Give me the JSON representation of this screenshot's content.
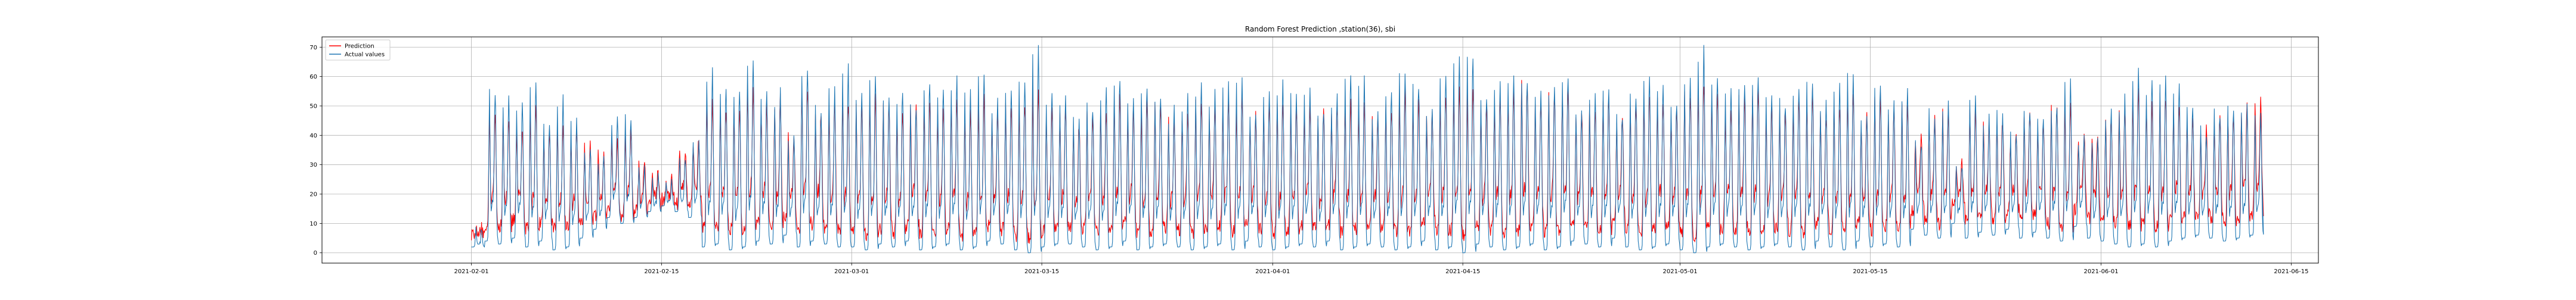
{
  "chart_data": {
    "type": "line",
    "title": "Random Forest Prediction ,station(36), sbi",
    "xlabel": "",
    "ylabel": "",
    "x_range": [
      "2021-01-21",
      "2021-06-17"
    ],
    "xlim": [
      "2021-01-21",
      "2021-06-17"
    ],
    "ylim": [
      -3.5,
      73.5
    ],
    "x_ticks": [
      "2021-02-01",
      "2021-02-15",
      "2021-03-01",
      "2021-03-15",
      "2021-04-01",
      "2021-04-15",
      "2021-05-01",
      "2021-05-15",
      "2021-06-01",
      "2021-06-15"
    ],
    "y_ticks": [
      0,
      10,
      20,
      30,
      40,
      50,
      60,
      70
    ],
    "grid": true,
    "legend_position": "top-left",
    "sampling": "hourly",
    "series": [
      {
        "name": "Prediction",
        "color": "#ff0000"
      },
      {
        "name": "Actual values",
        "color": "#1f77b4"
      }
    ],
    "segments": [
      {
        "start": "2021-02-01",
        "end": "2021-02-08",
        "actual_max": [
          7,
          56,
          52,
          50,
          56,
          45,
          53,
          44
        ],
        "actual_min": [
          2,
          4,
          3,
          5,
          2,
          4,
          1,
          2
        ],
        "pred_max": [
          8,
          47,
          45,
          42,
          48,
          40,
          44,
          40
        ],
        "pred_min": [
          6,
          10,
          9,
          11,
          8,
          10,
          8,
          9
        ]
      },
      {
        "start": "2021-02-09",
        "end": "2021-02-17",
        "actual_max": [
          38,
          33,
          45,
          47,
          30,
          25,
          23,
          32,
          38
        ],
        "actual_min": [
          5,
          8,
          12,
          10,
          12,
          14,
          16,
          14,
          12
        ],
        "pred_max": [
          36,
          34,
          40,
          42,
          31,
          27,
          25,
          34,
          39
        ],
        "pred_min": [
          11,
          12,
          14,
          13,
          15,
          16,
          18,
          17,
          16
        ]
      },
      {
        "start": "2021-02-18",
        "end": "2021-02-28",
        "actual_max": [
          62,
          58,
          55,
          68,
          55,
          54,
          40,
          65,
          50,
          55,
          62
        ],
        "actual_min": [
          2,
          3,
          1,
          2,
          4,
          3,
          6,
          2,
          4,
          3,
          2
        ],
        "pred_max": [
          52,
          50,
          50,
          56,
          50,
          52,
          40,
          55,
          48,
          50,
          52
        ],
        "pred_min": [
          8,
          9,
          8,
          9,
          10,
          9,
          12,
          8,
          10,
          9,
          8
        ]
      },
      {
        "start": "2021-03-01",
        "end": "2021-03-16",
        "actual_max": [
          54,
          60,
          52,
          55,
          50,
          60,
          55,
          58,
          54,
          62,
          50,
          55,
          60,
          68,
          55,
          52
        ],
        "actual_min": [
          2,
          1,
          3,
          2,
          4,
          1,
          2,
          3,
          1,
          2,
          4,
          3,
          1,
          0,
          2,
          3
        ],
        "pred_max": [
          50,
          52,
          50,
          48,
          50,
          52,
          50,
          50,
          48,
          52,
          48,
          50,
          52,
          55,
          50,
          48
        ],
        "pred_min": [
          7,
          6,
          8,
          7,
          9,
          6,
          7,
          8,
          6,
          7,
          9,
          8,
          6,
          5,
          7,
          8
        ]
      },
      {
        "start": "2021-03-17",
        "end": "2021-04-02",
        "actual_max": [
          45,
          50,
          55,
          60,
          52,
          58,
          55,
          48,
          52,
          58,
          54,
          56,
          60,
          50,
          55,
          58,
          54
        ],
        "actual_min": [
          3,
          2,
          1,
          2,
          4,
          1,
          2,
          3,
          2,
          1,
          2,
          3,
          1,
          4,
          2,
          1,
          2
        ],
        "pred_max": [
          44,
          47,
          50,
          52,
          48,
          50,
          50,
          45,
          48,
          51,
          49,
          50,
          52,
          46,
          50,
          51,
          49
        ],
        "pred_min": [
          9,
          8,
          7,
          8,
          10,
          7,
          8,
          9,
          8,
          7,
          8,
          9,
          7,
          10,
          8,
          7,
          8
        ]
      },
      {
        "start": "2021-04-03",
        "end": "2021-04-18",
        "actual_max": [
          55,
          50,
          52,
          60,
          58,
          48,
          55,
          62,
          58,
          50,
          60,
          65,
          68,
          55,
          58,
          62
        ],
        "actual_min": [
          3,
          2,
          4,
          1,
          2,
          3,
          2,
          1,
          2,
          4,
          1,
          2,
          0,
          3,
          2,
          1
        ],
        "pred_max": [
          50,
          48,
          50,
          52,
          51,
          46,
          50,
          54,
          52,
          47,
          53,
          55,
          56,
          50,
          52,
          54
        ],
        "pred_min": [
          9,
          8,
          10,
          7,
          8,
          9,
          8,
          7,
          8,
          10,
          7,
          8,
          6,
          9,
          8,
          7
        ]
      },
      {
        "start": "2021-04-19",
        "end": "2021-05-05",
        "actual_max": [
          60,
          55,
          58,
          62,
          50,
          52,
          56,
          48,
          55,
          60,
          58,
          52,
          60,
          68,
          60,
          55,
          58
        ],
        "actual_min": [
          2,
          3,
          1,
          2,
          4,
          3,
          2,
          5,
          2,
          1,
          2,
          3,
          1,
          0,
          2,
          3,
          2
        ],
        "pred_max": [
          58,
          52,
          54,
          56,
          48,
          50,
          52,
          46,
          50,
          54,
          53,
          49,
          54,
          58,
          55,
          50,
          53
        ],
        "pred_min": [
          8,
          9,
          7,
          8,
          10,
          9,
          8,
          11,
          8,
          7,
          8,
          9,
          7,
          6,
          8,
          9,
          8
        ]
      },
      {
        "start": "2021-05-06",
        "end": "2021-05-17",
        "actual_max": [
          62,
          55,
          52,
          58,
          60,
          50,
          55,
          62,
          48,
          58,
          52,
          55
        ],
        "actual_min": [
          1,
          2,
          3,
          2,
          1,
          4,
          2,
          1,
          4,
          2,
          3,
          2
        ],
        "pred_max": [
          56,
          50,
          48,
          52,
          54,
          47,
          50,
          55,
          46,
          53,
          48,
          50
        ],
        "pred_min": [
          7,
          8,
          9,
          8,
          7,
          10,
          8,
          7,
          10,
          8,
          9,
          8
        ]
      },
      {
        "start": "2021-05-18",
        "end": "2021-05-30",
        "actual_max": [
          38,
          48,
          50,
          30,
          52,
          45,
          48,
          40,
          50,
          45,
          52,
          58,
          40
        ],
        "actual_min": [
          8,
          6,
          5,
          10,
          5,
          7,
          6,
          8,
          5,
          7,
          5,
          4,
          9
        ],
        "pred_max": [
          40,
          45,
          48,
          32,
          48,
          44,
          46,
          40,
          48,
          44,
          50,
          52,
          40
        ],
        "pred_min": [
          14,
          12,
          10,
          16,
          11,
          13,
          12,
          14,
          11,
          13,
          10,
          9,
          15
        ]
      },
      {
        "start": "2021-05-31",
        "end": "2021-06-12",
        "actual_max": [
          40,
          48,
          52,
          62,
          58,
          60,
          55,
          50,
          42,
          48,
          50,
          49,
          47
        ],
        "actual_min": [
          5,
          4,
          3,
          2,
          3,
          2,
          4,
          5,
          6,
          5,
          4,
          5,
          6
        ],
        "pred_max": [
          42,
          47,
          50,
          55,
          52,
          54,
          50,
          46,
          42,
          46,
          48,
          50,
          52
        ],
        "pred_min": [
          12,
          11,
          10,
          9,
          10,
          9,
          11,
          12,
          13,
          12,
          11,
          12,
          13
        ]
      }
    ],
    "end": {
      "date": "2021-06-12",
      "actual_last": 27,
      "pred_last": 30
    }
  }
}
